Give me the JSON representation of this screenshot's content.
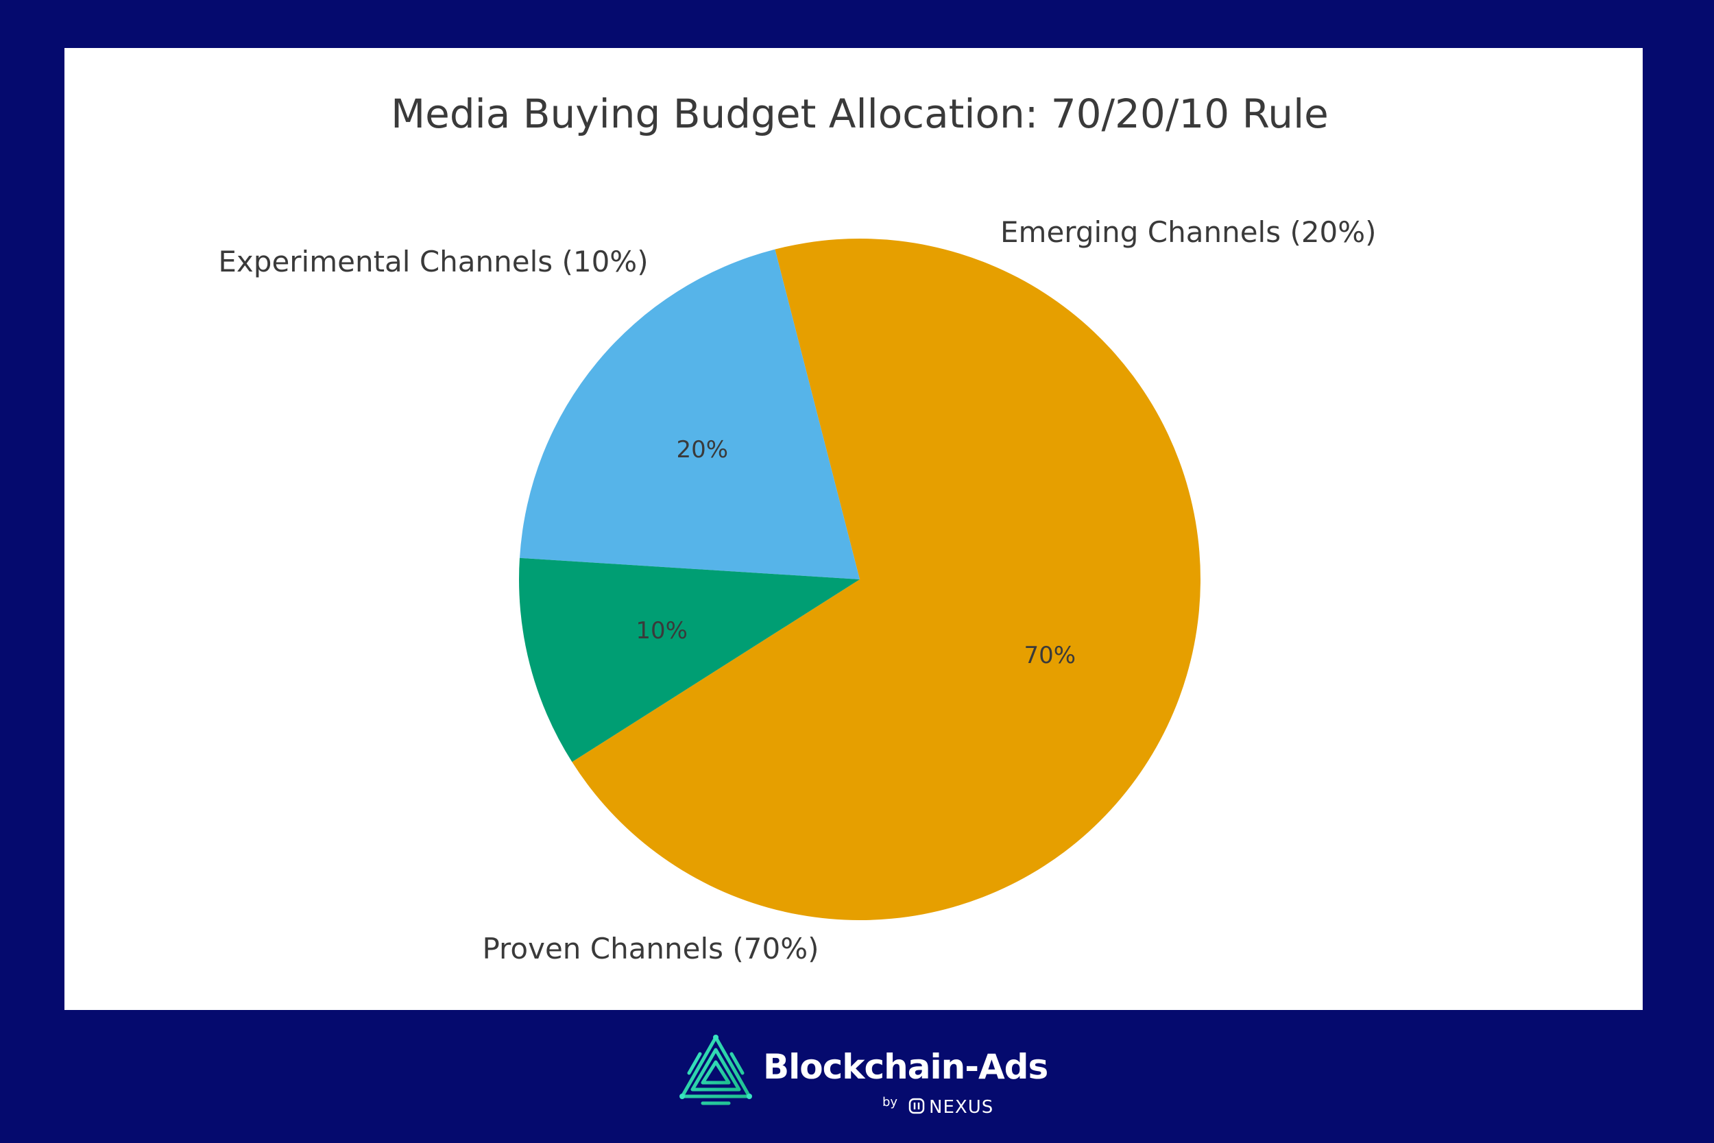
{
  "chart_data": {
    "type": "pie",
    "title": "Media Buying Budget Allocation: 70/20/10 Rule",
    "slices": [
      {
        "label": "Proven Channels (70%)",
        "value": 70,
        "pct_label": "70%",
        "color": "#e69f00"
      },
      {
        "label": "Emerging Channels (20%)",
        "value": 20,
        "pct_label": "20%",
        "color": "#56b4e9"
      },
      {
        "label": "Experimental Channels (10%)",
        "value": 10,
        "pct_label": "10%",
        "color": "#009e73"
      }
    ],
    "legend": "none"
  },
  "colors": {
    "page_background": "#050a6e",
    "panel_background": "#ffffff",
    "brand_accent": "#2de0a8"
  },
  "brand": {
    "name": "Blockchain-Ads",
    "by": "by",
    "partner": "NEXUS",
    "icon": "blockchain-ads-logo-icon"
  }
}
